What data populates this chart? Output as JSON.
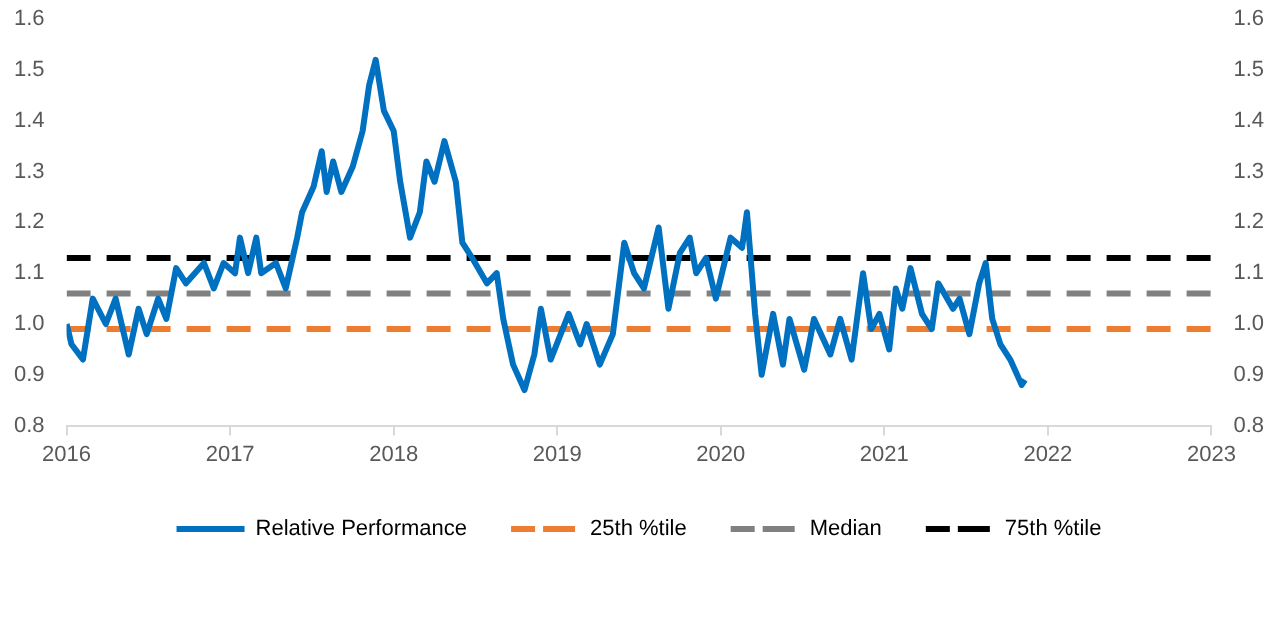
{
  "chart_data": {
    "type": "line",
    "xlim": [
      2016,
      2023
    ],
    "xticks": [
      2016,
      2017,
      2018,
      2019,
      2020,
      2021,
      2022,
      2023
    ],
    "ylim": [
      0.8,
      1.6
    ],
    "yticks": [
      0.8,
      0.9,
      {
        "value": 1,
        "label": "1.0"
      },
      1.1,
      1.2,
      1.3,
      1.4,
      1.5,
      1.6
    ],
    "y2lim": [
      0.8,
      1.6
    ],
    "y2ticks": [
      0.8,
      0.9,
      {
        "value": 1,
        "label": "1.0"
      },
      1.1,
      1.2,
      1.3,
      1.4,
      1.5,
      1.6
    ],
    "grid": false,
    "legend": "bottom",
    "marker": "none",
    "line_style": "solid",
    "series": [
      {
        "name": "Relative Performance",
        "color": "#0070c0",
        "x": [
          2016.0,
          2016.03,
          2016.1,
          2016.16,
          2016.24,
          2016.3,
          2016.38,
          2016.44,
          2016.49,
          2016.56,
          2016.61,
          2016.67,
          2016.73,
          2016.84,
          2016.9,
          2016.96,
          2017.03,
          2017.06,
          2017.11,
          2017.16,
          2017.19,
          2017.28,
          2017.34,
          2017.41,
          2017.44,
          2017.51,
          2017.56,
          2017.59,
          2017.63,
          2017.68,
          2017.75,
          2017.81,
          2017.85,
          2017.89,
          2017.94,
          2018.0,
          2018.04,
          2018.1,
          2018.16,
          2018.2,
          2018.25,
          2018.31,
          2018.38,
          2018.42,
          2018.48,
          2018.57,
          2018.63,
          2018.67,
          2018.73,
          2018.8,
          2018.86,
          2018.9,
          2018.96,
          2019.07,
          2019.14,
          2019.18,
          2019.26,
          2019.34,
          2019.41,
          2019.47,
          2019.53,
          2019.62,
          2019.68,
          2019.75,
          2019.81,
          2019.85,
          2019.91,
          2019.97,
          2020.06,
          2020.13,
          2020.16,
          2020.21,
          2020.25,
          2020.32,
          2020.38,
          2020.42,
          2020.51,
          2020.57,
          2020.67,
          2020.73,
          2020.8,
          2020.87,
          2020.92,
          2020.97,
          2021.03,
          2021.07,
          2021.11,
          2021.16,
          2021.23,
          2021.29,
          2021.33,
          2021.42,
          2021.46,
          2021.52,
          2021.58,
          2021.62,
          2021.66,
          2021.71,
          2021.77,
          2021.84,
          2021.86
        ],
        "values": [
          1.0,
          0.96,
          0.93,
          1.05,
          1.0,
          1.05,
          0.94,
          1.03,
          0.98,
          1.05,
          1.01,
          1.11,
          1.08,
          1.12,
          1.07,
          1.12,
          1.1,
          1.17,
          1.1,
          1.17,
          1.1,
          1.12,
          1.07,
          1.17,
          1.22,
          1.27,
          1.34,
          1.26,
          1.32,
          1.26,
          1.31,
          1.38,
          1.47,
          1.52,
          1.42,
          1.38,
          1.28,
          1.17,
          1.22,
          1.32,
          1.28,
          1.36,
          1.28,
          1.16,
          1.13,
          1.08,
          1.1,
          1.01,
          0.92,
          0.87,
          0.94,
          1.03,
          0.93,
          1.02,
          0.96,
          1.0,
          0.92,
          0.98,
          1.16,
          1.1,
          1.07,
          1.19,
          1.03,
          1.14,
          1.17,
          1.1,
          1.13,
          1.05,
          1.17,
          1.15,
          1.22,
          1.02,
          0.9,
          1.02,
          0.92,
          1.01,
          0.91,
          1.01,
          0.94,
          1.01,
          0.93,
          1.1,
          0.99,
          1.02,
          0.95,
          1.07,
          1.03,
          1.11,
          1.02,
          0.99,
          1.08,
          1.03,
          1.05,
          0.98,
          1.08,
          1.12,
          1.01,
          0.96,
          0.93,
          0.88,
          0.89
        ]
      }
    ],
    "ref_lines": [
      {
        "axis": "y",
        "value": 0.99,
        "label": "25th %tile",
        "color": "#ed7d31",
        "line_style": "dashed"
      },
      {
        "axis": "y",
        "value": 1.06,
        "label": "Median",
        "color": "#808080",
        "line_style": "dashed"
      },
      {
        "axis": "y",
        "value": 1.13,
        "label": "75th %tile",
        "color": "#000000",
        "line_style": "dashed"
      }
    ]
  }
}
